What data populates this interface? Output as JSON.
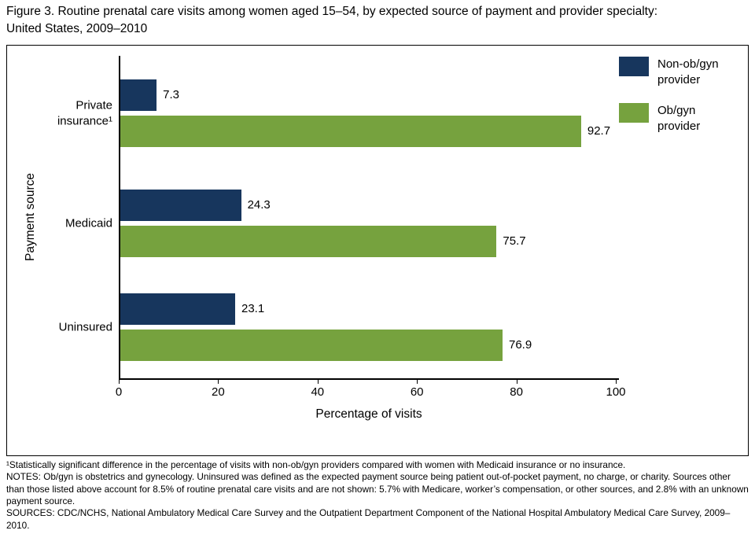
{
  "figure_title": {
    "line1": "Figure 3. Routine prenatal care visits among women aged 15–54, by expected source of payment and provider specialty:",
    "line2": "United States, 2009–2010"
  },
  "chart_data": {
    "type": "bar",
    "orientation": "horizontal",
    "categories": [
      "Private insurance¹",
      "Medicaid",
      "Uninsured"
    ],
    "series": [
      {
        "name": "Non-ob/gyn provider",
        "color": "#17365D",
        "values": [
          7.3,
          24.3,
          23.1
        ]
      },
      {
        "name": "Ob/gyn provider",
        "color": "#76A23E",
        "values": [
          92.7,
          75.7,
          76.9
        ]
      }
    ],
    "xlabel": "Percentage of visits",
    "ylabel": "Payment source",
    "xlim": [
      0,
      100
    ],
    "xticks": [
      0,
      20,
      40,
      60,
      80,
      100
    ],
    "value_labels": true,
    "legend_position": "top-right",
    "grid": false
  },
  "footnotes": [
    "¹Statistically significant difference in the percentage of visits with non-ob/gyn providers compared with women with Medicaid insurance or no insurance.",
    "NOTES: Ob/gyn is obstetrics and gynecology. Uninsured was defined as the expected payment source being patient out-of-pocket payment, no charge, or charity. Sources other than those listed above account for 8.5% of routine prenatal care visits and are not shown: 5.7% with Medicare, worker’s compensation, or other sources, and 2.8% with an unknown payment source.",
    "SOURCES: CDC/NCHS, National Ambulatory Medical Care Survey and the Outpatient Department Component of the National Hospital Ambulatory Medical Care Survey, 2009–2010."
  ]
}
